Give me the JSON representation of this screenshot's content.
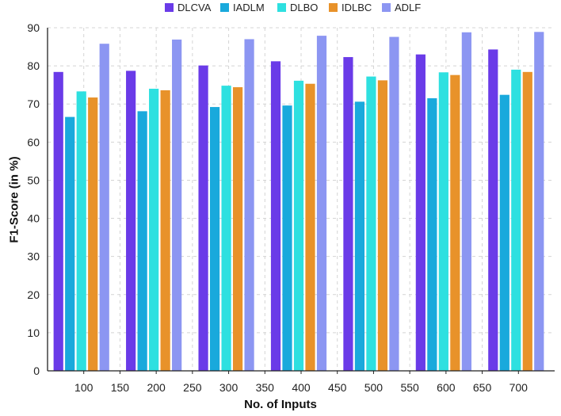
{
  "chart_data": {
    "type": "bar",
    "title": "",
    "xlabel": "No. of Inputs",
    "ylabel": "F1-Score (in %)",
    "ylim": [
      0,
      90
    ],
    "yticks": [
      0,
      10,
      20,
      30,
      40,
      50,
      60,
      70,
      80,
      90
    ],
    "xticks": [
      "100",
      "150",
      "200",
      "250",
      "300",
      "350",
      "400",
      "450",
      "500",
      "550",
      "600",
      "650",
      "700"
    ],
    "categories": [
      "100",
      "200",
      "300",
      "400",
      "500",
      "600",
      "700"
    ],
    "grid": true,
    "legend_position": "top",
    "series": [
      {
        "name": "DLCVA",
        "color": "#6a3be8",
        "values": [
          78.4,
          78.7,
          80.1,
          81.2,
          82.3,
          83.0,
          84.3
        ]
      },
      {
        "name": "IADLM",
        "color": "#19a9dc",
        "values": [
          66.6,
          68.1,
          69.2,
          69.6,
          70.6,
          71.5,
          72.4
        ]
      },
      {
        "name": "DLBO",
        "color": "#2ee0e0",
        "values": [
          73.3,
          74.0,
          74.8,
          76.1,
          77.2,
          78.3,
          79.0
        ]
      },
      {
        "name": "IDLBC",
        "color": "#e8922a",
        "values": [
          71.7,
          73.6,
          74.4,
          75.3,
          76.2,
          77.6,
          78.4
        ]
      },
      {
        "name": "ADLF",
        "color": "#8c96f2",
        "values": [
          85.8,
          86.9,
          87.0,
          87.9,
          87.6,
          88.8,
          88.9
        ]
      }
    ]
  }
}
